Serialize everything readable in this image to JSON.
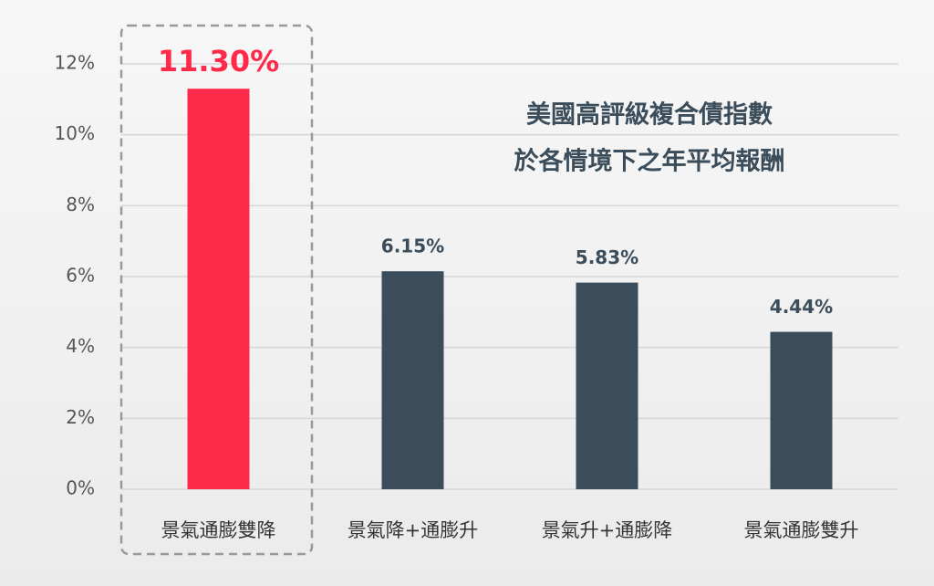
{
  "chart_data": {
    "type": "bar",
    "title": "美國高評級複合債指數",
    "subtitle": "於各情境下之年平均報酬",
    "categories": [
      "景氣通膨雙降",
      "景氣降+通膨升",
      "景氣升+通膨降",
      "景氣通膨雙升"
    ],
    "values": [
      11.3,
      6.15,
      5.83,
      4.44
    ],
    "value_labels": [
      "11.30%",
      "6.15%",
      "5.83%",
      "4.44%"
    ],
    "colors": [
      "#ff2a4a",
      "#3b4d5a",
      "#3b4d5a",
      "#3b4d5a"
    ],
    "ylim": [
      0,
      12
    ],
    "yticks": [
      {
        "value": 0,
        "label": "0%"
      },
      {
        "value": 2,
        "label": "2%"
      },
      {
        "value": 4,
        "label": "4%"
      },
      {
        "value": 6,
        "label": "6%"
      },
      {
        "value": 8,
        "label": "8%"
      },
      {
        "value": 10,
        "label": "10%"
      },
      {
        "value": 12,
        "label": "12%"
      }
    ],
    "grid": true
  }
}
